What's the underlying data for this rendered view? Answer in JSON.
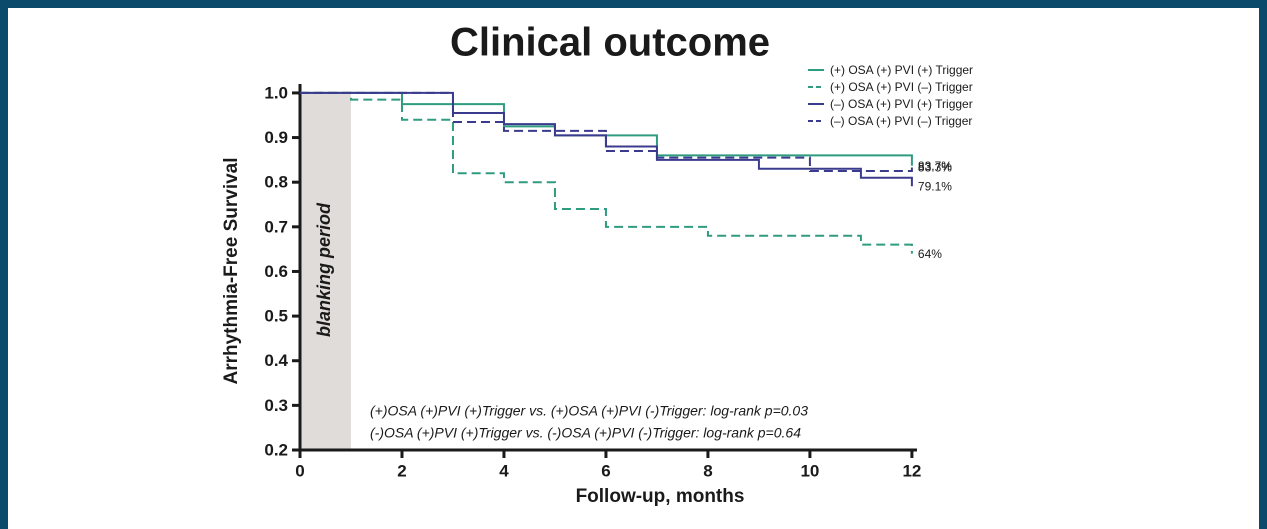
{
  "chart_data": {
    "type": "step",
    "title": "Clinical outcome",
    "x_label": "Follow-up, months",
    "y_label": "Arrhythmia-Free Survival",
    "xlim": [
      0,
      12.1
    ],
    "xticks": [
      0,
      2,
      4,
      6,
      8,
      10,
      12
    ],
    "ylim": [
      0.2,
      1.02
    ],
    "yticks": [
      0.2,
      0.3,
      0.4,
      0.5,
      0.6,
      0.7,
      0.8,
      0.9,
      {
        "value": 1,
        "label": "1.0"
      }
    ],
    "shaded_region": {
      "xlim": [
        0,
        1
      ],
      "label": "blanking period",
      "color": "#e0dcda"
    },
    "legend": "top-right",
    "series": [
      {
        "name": "(+) OSA (+) PVI (+) Trigger",
        "color": "#2f9c80",
        "dash": false,
        "x": [
          0,
          2,
          4,
          5,
          7,
          12
        ],
        "values": [
          1,
          0.975,
          0.925,
          0.905,
          0.86,
          0.837
        ],
        "value_labels": [
          null,
          null,
          null,
          null,
          null,
          "83.7%"
        ]
      },
      {
        "name": "(+) OSA (+) PVI (–) Trigger",
        "color": "#2f9c80",
        "dash": true,
        "x": [
          0,
          1,
          2,
          3,
          4,
          5,
          6,
          8,
          11,
          12
        ],
        "values": [
          1,
          0.985,
          0.94,
          0.82,
          0.8,
          0.74,
          0.7,
          0.68,
          0.66,
          0.64
        ],
        "value_labels": [
          null,
          null,
          null,
          null,
          null,
          null,
          null,
          null,
          null,
          "64%"
        ]
      },
      {
        "name": "(–) OSA (+) PVI (+) Trigger",
        "color": "#3b3b8e",
        "dash": false,
        "x": [
          0,
          3,
          4,
          5,
          6,
          7,
          9,
          11,
          12
        ],
        "values": [
          1,
          0.955,
          0.93,
          0.905,
          0.88,
          0.85,
          0.83,
          0.81,
          0.791
        ],
        "value_labels": [
          null,
          null,
          null,
          null,
          null,
          null,
          null,
          null,
          "79.1%"
        ]
      },
      {
        "name": "(–) OSA (+) PVI (–) Trigger",
        "color": "#3b3b8e",
        "dash": true,
        "x": [
          0,
          3,
          4,
          6,
          7,
          10,
          12
        ],
        "values": [
          1,
          0.935,
          0.915,
          0.87,
          0.855,
          0.825,
          0.833
        ],
        "value_labels": [
          null,
          null,
          null,
          null,
          null,
          null,
          "83.3%"
        ]
      }
    ],
    "annotations": [
      "(+)OSA (+)PVI (+)Trigger vs. (+)OSA (+)PVI (-)Trigger: log-rank p=0.03",
      "(-)OSA (+)PVI (+)Trigger vs. (-)OSA (+)PVI (-)Trigger: log-rank p=0.64"
    ]
  }
}
